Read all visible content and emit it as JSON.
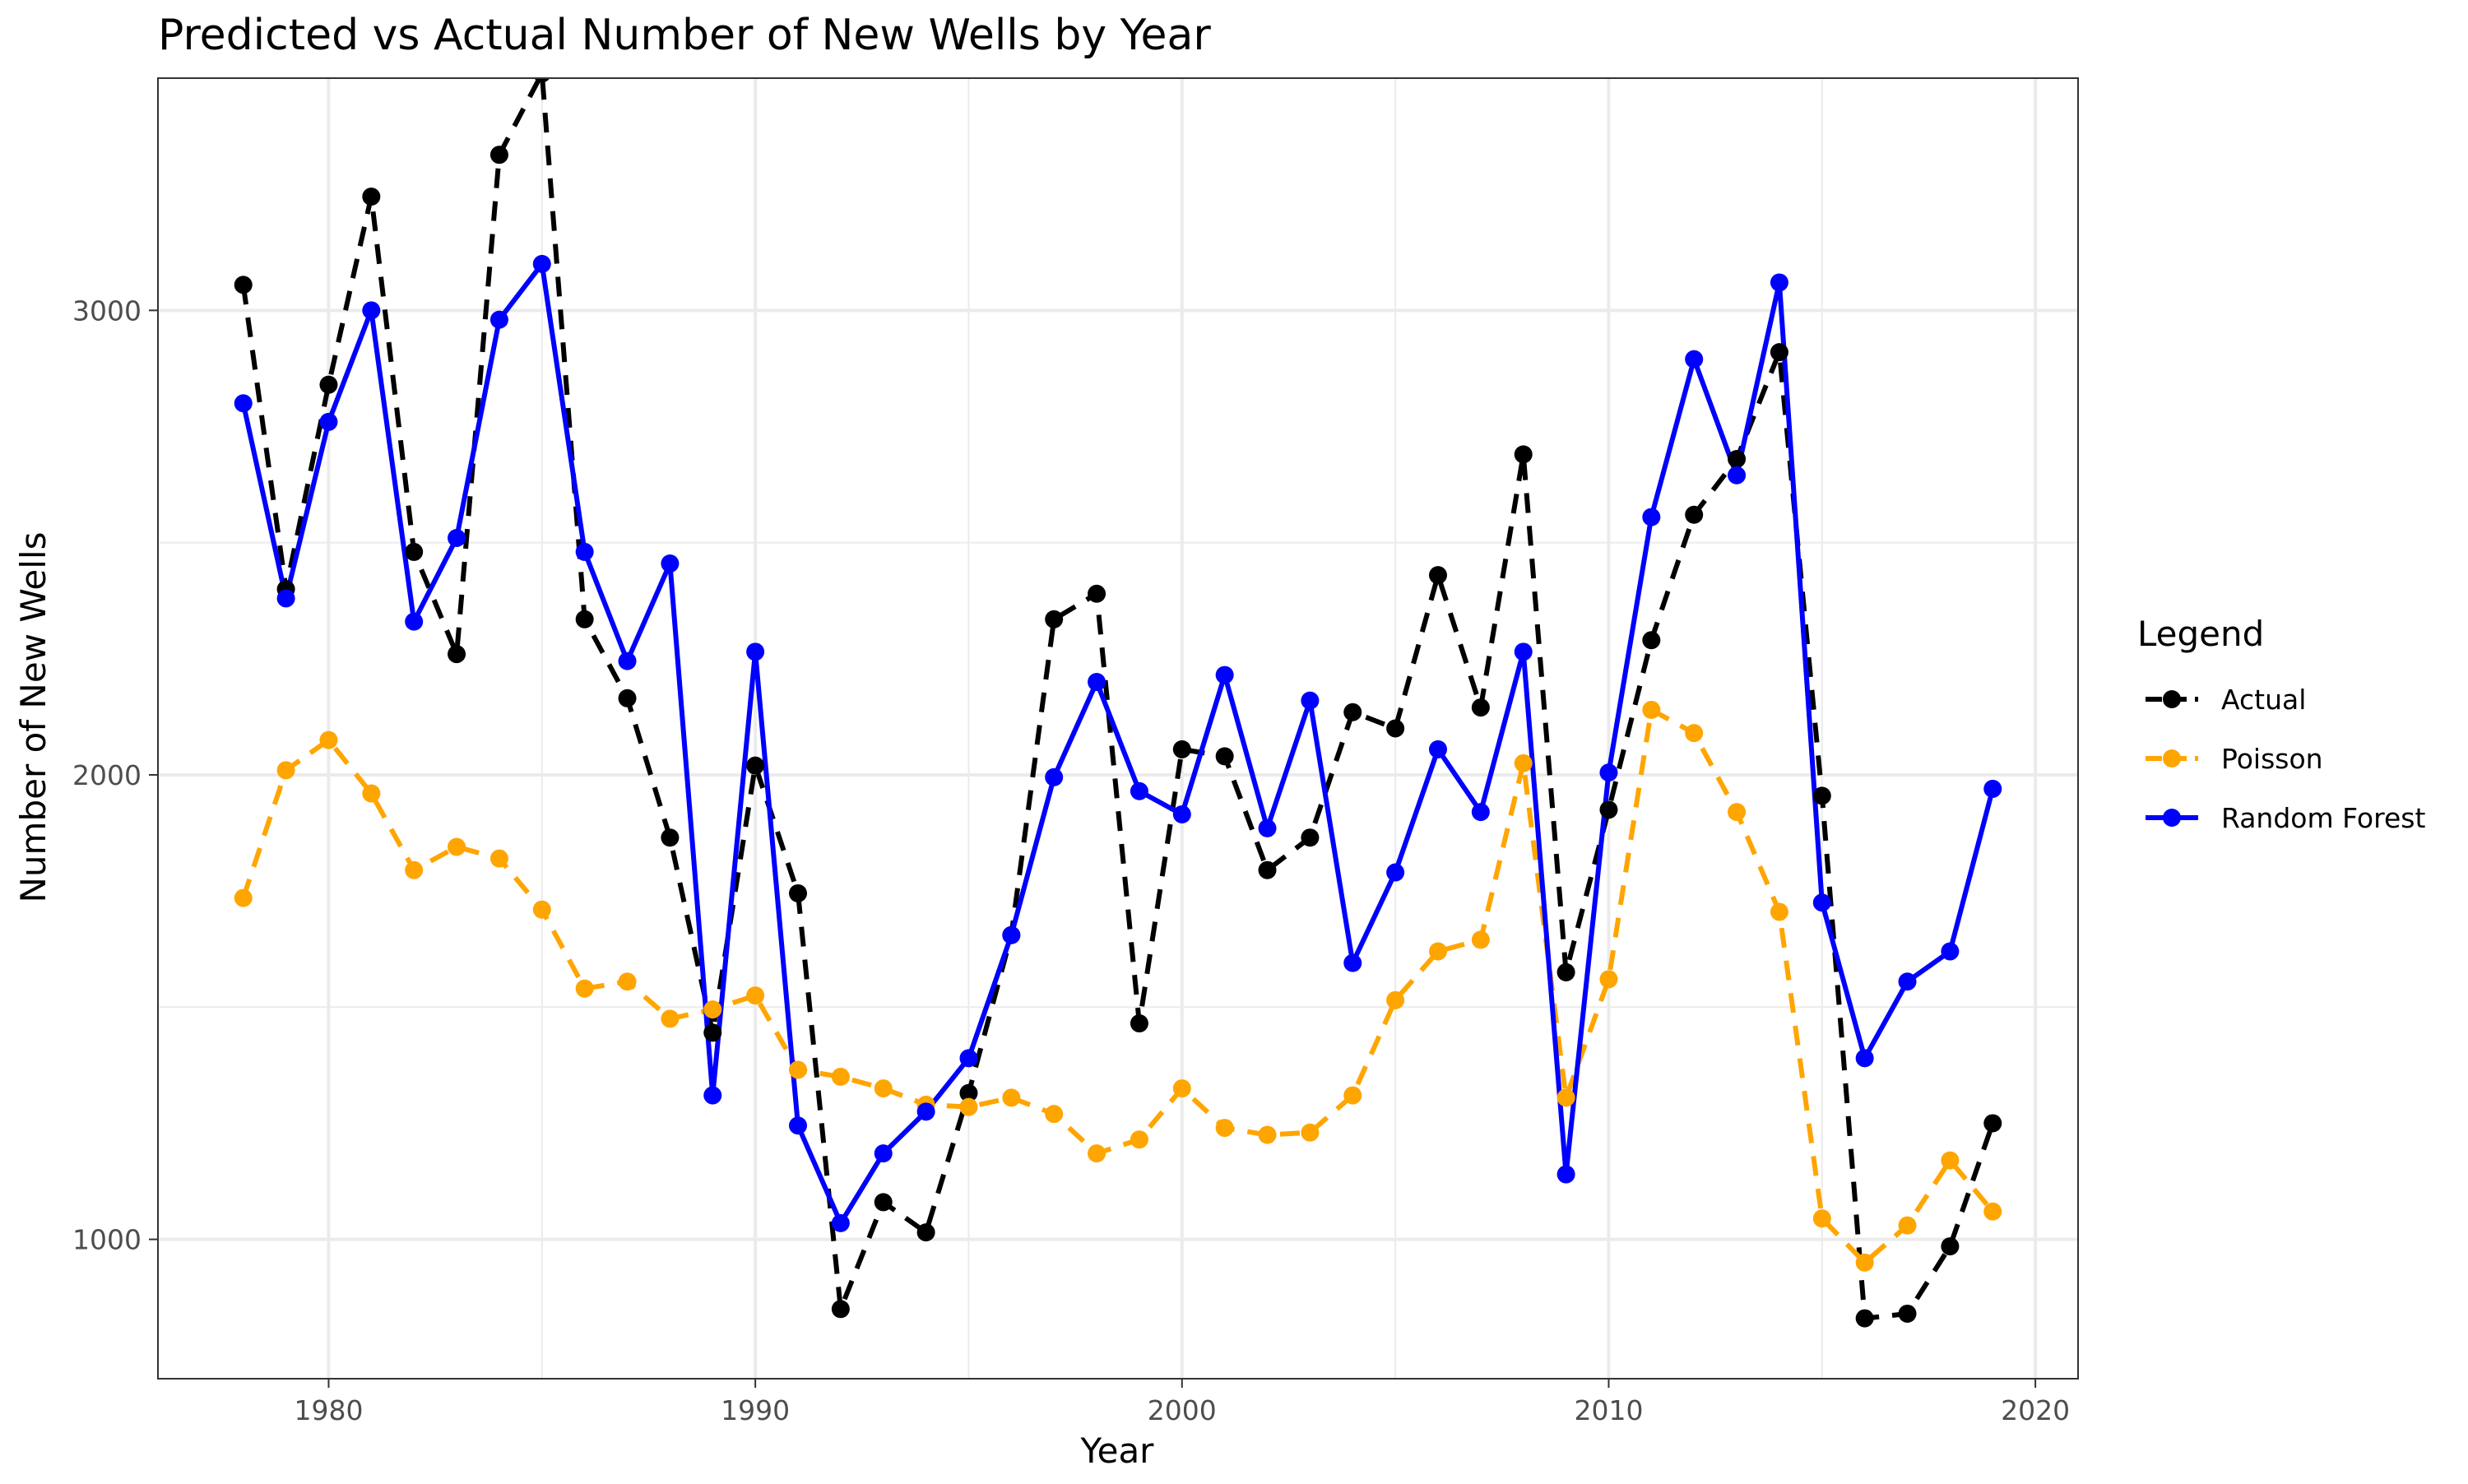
{
  "chart_data": {
    "type": "line",
    "title": "Predicted vs Actual Number of New Wells by Year",
    "xlabel": "Year",
    "ylabel": "Number of New Wells",
    "xlim": [
      1976,
      2021
    ],
    "ylim": [
      700,
      3500
    ],
    "xticks": [
      1980,
      1990,
      2000,
      2010,
      2020
    ],
    "yticks": [
      1000,
      2000,
      3000
    ],
    "grid": true,
    "legend": {
      "title": "Legend",
      "position": "right"
    },
    "x": [
      1978,
      1979,
      1980,
      1981,
      1982,
      1983,
      1984,
      1985,
      1986,
      1987,
      1988,
      1989,
      1990,
      1991,
      1992,
      1993,
      1994,
      1995,
      1996,
      1997,
      1998,
      1999,
      2000,
      2001,
      2002,
      2003,
      2004,
      2005,
      2006,
      2007,
      2008,
      2009,
      2010,
      2011,
      2012,
      2013,
      2014,
      2015,
      2016,
      2017,
      2018,
      2019
    ],
    "series": [
      {
        "name": "Actual",
        "color": "#000000",
        "style": "dashed",
        "values": [
          3055,
          2400,
          2840,
          3245,
          2480,
          2260,
          3335,
          3510,
          2335,
          2165,
          1865,
          1445,
          2020,
          1745,
          850,
          1080,
          1015,
          1315,
          1655,
          2335,
          2390,
          1465,
          2055,
          2040,
          1795,
          1865,
          2135,
          2100,
          2430,
          2145,
          2690,
          1575,
          1925,
          2290,
          2560,
          2680,
          2910,
          1955,
          830,
          840,
          985,
          1250
        ]
      },
      {
        "name": "Poisson",
        "color": "#FFA500",
        "style": "dashed",
        "values": [
          1735,
          2010,
          2075,
          1960,
          1795,
          1845,
          1820,
          1710,
          1540,
          1555,
          1475,
          1495,
          1525,
          1365,
          1350,
          1325,
          1290,
          1285,
          1305,
          1270,
          1185,
          1215,
          1325,
          1240,
          1225,
          1230,
          1310,
          1515,
          1620,
          1645,
          2025,
          1305,
          1560,
          2140,
          2090,
          1920,
          1705,
          1045,
          950,
          1030,
          1170,
          1060
        ]
      },
      {
        "name": "Random Forest",
        "color": "#0000FF",
        "style": "solid",
        "values": [
          2800,
          2380,
          2760,
          3000,
          2330,
          2510,
          2980,
          3100,
          2480,
          2245,
          2455,
          1310,
          2265,
          1245,
          1035,
          1185,
          1275,
          1390,
          1655,
          1995,
          2200,
          1965,
          1915,
          2215,
          1885,
          2160,
          1595,
          1790,
          2055,
          1920,
          2265,
          1140,
          2005,
          2555,
          2895,
          2645,
          3060,
          1725,
          1390,
          1555,
          1620,
          1970
        ]
      }
    ]
  }
}
